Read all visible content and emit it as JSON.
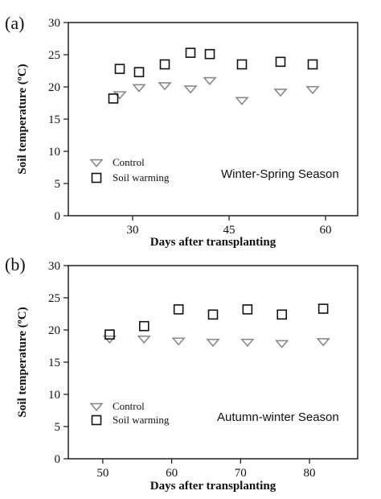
{
  "chart_data": [
    {
      "type": "scatter",
      "panel_label": "(a)",
      "annotation": "Winter-Spring Season",
      "xlabel": "Days after transplanting",
      "ylabel": "Soil temperature (ºC)",
      "xlim": [
        20,
        65
      ],
      "ylim": [
        0,
        30
      ],
      "xticks": [
        30,
        45,
        60
      ],
      "yticks": [
        0,
        5,
        10,
        15,
        20,
        25,
        30
      ],
      "legend_position": "lower-left",
      "series": [
        {
          "name": "Control",
          "marker": "triangle-down",
          "color": "#8a8a8a",
          "x": [
            28,
            31,
            35,
            39,
            42,
            47,
            53,
            58
          ],
          "y": [
            18.8,
            19.9,
            20.2,
            19.7,
            21.0,
            17.9,
            19.2,
            19.6
          ]
        },
        {
          "name": "Soil warming",
          "marker": "square",
          "color": "#111111",
          "x": [
            27,
            28,
            31,
            35,
            39,
            42,
            47,
            53,
            58
          ],
          "y": [
            18.2,
            22.8,
            22.3,
            23.5,
            25.3,
            25.1,
            23.5,
            23.9,
            23.5
          ]
        }
      ]
    },
    {
      "type": "scatter",
      "panel_label": "(b)",
      "annotation": "Autumn-winter Season",
      "xlabel": "Days after transplanting",
      "ylabel": "Soil temperature (ºC)",
      "xlim": [
        45,
        87
      ],
      "ylim": [
        0,
        30
      ],
      "xticks": [
        50,
        60,
        70,
        80
      ],
      "yticks": [
        0,
        5,
        10,
        15,
        20,
        25,
        30
      ],
      "legend_position": "lower-left",
      "series": [
        {
          "name": "Control",
          "marker": "triangle-down",
          "color": "#8a8a8a",
          "x": [
            51,
            56,
            61,
            66,
            71,
            76,
            82
          ],
          "y": [
            18.6,
            18.6,
            18.3,
            18.1,
            18.1,
            17.9,
            18.2
          ]
        },
        {
          "name": "Soil warming",
          "marker": "square",
          "color": "#111111",
          "x": [
            51,
            56,
            61,
            66,
            71,
            76,
            82
          ],
          "y": [
            19.3,
            20.6,
            23.2,
            22.4,
            23.2,
            22.4,
            23.3
          ]
        }
      ]
    }
  ]
}
